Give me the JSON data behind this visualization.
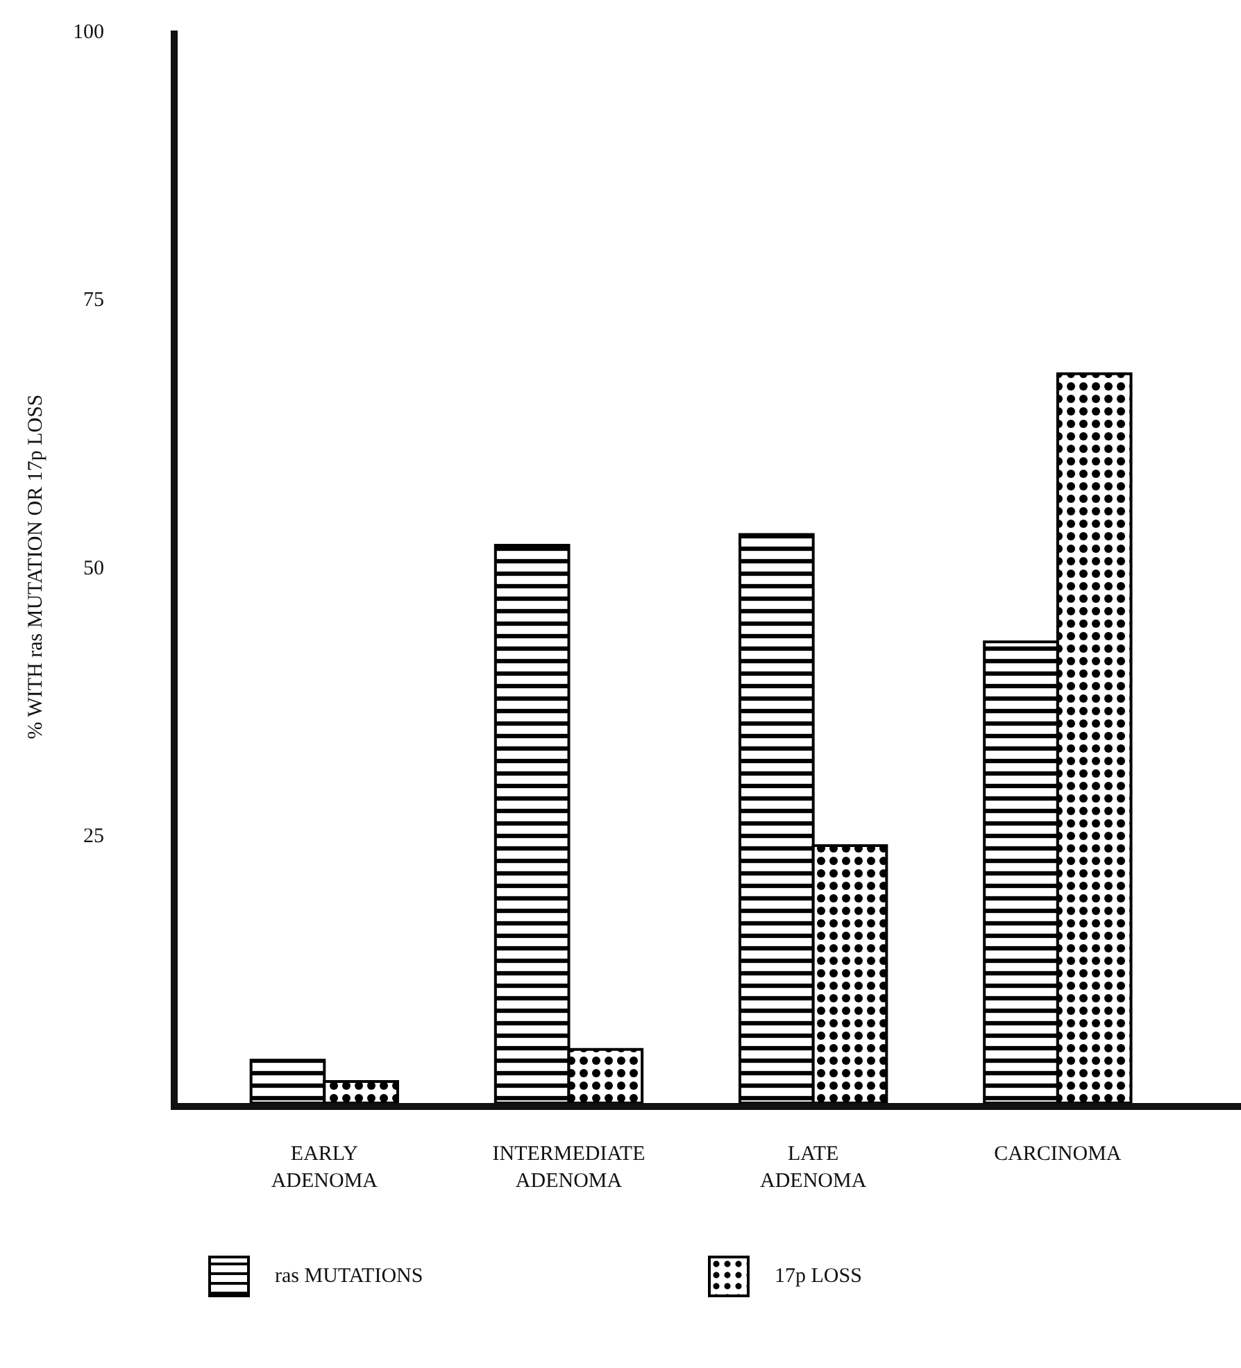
{
  "chart_data": {
    "type": "bar",
    "ylabel": "% WITH ras MUTATION OR 17p LOSS",
    "categories": [
      "EARLY ADENOMA",
      "INTERMEDIATE ADENOMA",
      "LATE ADENOMA",
      "CARCINOMA"
    ],
    "series": [
      {
        "name": "ras MUTATIONS",
        "color": "#000000",
        "values": [
          4,
          52,
          53,
          43
        ]
      },
      {
        "name": "17p LOSS",
        "color": "#000000",
        "values": [
          2,
          5,
          24,
          68
        ]
      }
    ],
    "ylim": [
      0,
      100
    ],
    "yticks": [
      25,
      50,
      75,
      100
    ],
    "grid": false,
    "legend": "bottom"
  }
}
